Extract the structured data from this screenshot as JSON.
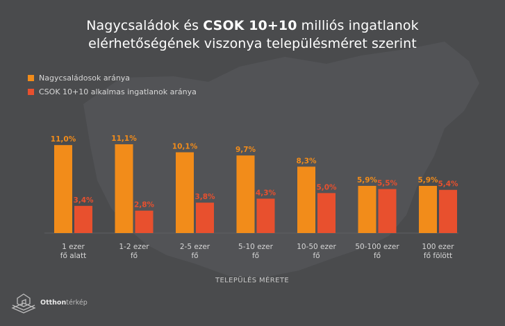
{
  "title": {
    "line1_pre": "Nagycsaládok és ",
    "line1_bold": "CSOK 10+10",
    "line1_post": " milliós ingatlanok",
    "line2": "elérhetőségének viszonya településméret szerint"
  },
  "legend": [
    {
      "label": "Nagycsaládosok aránya",
      "color": "#f28c1a"
    },
    {
      "label": "CSOK 10+10 alkalmas ingatlanok aránya",
      "color": "#e8502e"
    }
  ],
  "brand": {
    "name_bold": "Otthon",
    "name_light": "térkép"
  },
  "chart_data": {
    "type": "bar",
    "xlabel": "TELEPÜLÉS MÉRETE",
    "ylabel": "",
    "ylim": [
      0,
      11.1
    ],
    "grid": false,
    "legend_position": "top-left",
    "categories": [
      [
        "1 ezer",
        "fő alatt"
      ],
      [
        "1-2 ezer",
        "fő"
      ],
      [
        "2-5 ezer",
        "fő"
      ],
      [
        "5-10 ezer",
        "fő"
      ],
      [
        "10-50 ezer",
        "fő"
      ],
      [
        "50-100 ezer",
        "fő"
      ],
      [
        "100 ezer",
        "fő fölött"
      ]
    ],
    "series": [
      {
        "name": "Nagycsaládosok aránya",
        "color": "#f28c1a",
        "values": [
          11.0,
          11.1,
          10.1,
          9.7,
          8.3,
          5.9,
          5.9
        ],
        "labels": [
          "11,0%",
          "11,1%",
          "10,1%",
          "9,7%",
          "8,3%",
          "5,9%",
          "5,9%"
        ]
      },
      {
        "name": "CSOK 10+10 alkalmas ingatlanok aránya",
        "color": "#e8502e",
        "values": [
          3.4,
          2.8,
          3.8,
          4.3,
          5.0,
          5.5,
          5.4
        ],
        "labels": [
          "3,4%",
          "2,8%",
          "3,8%",
          "4,3%",
          "5,0%",
          "5,5%",
          "5,4%"
        ]
      }
    ]
  }
}
